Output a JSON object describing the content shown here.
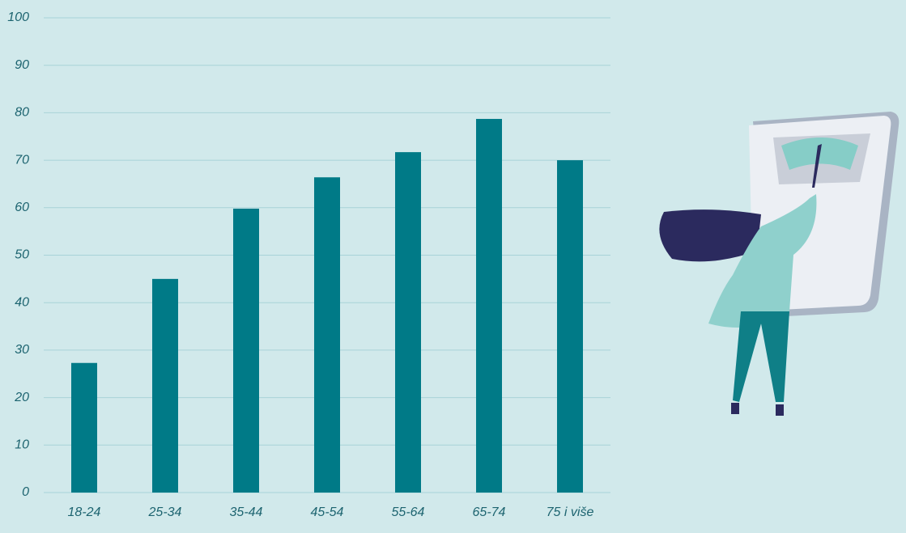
{
  "chart_data": {
    "type": "bar",
    "categories": [
      "18-24",
      "25-34",
      "35-44",
      "45-54",
      "55-64",
      "65-74",
      "75 i više"
    ],
    "values": [
      27.3,
      45.0,
      59.8,
      66.4,
      71.7,
      78.7,
      70.0
    ],
    "color": "#007a87",
    "ylim": [
      0,
      100
    ],
    "yticks": [
      0,
      10,
      20,
      30,
      40,
      50,
      60,
      70,
      80,
      90,
      100
    ],
    "grid": true
  }
}
